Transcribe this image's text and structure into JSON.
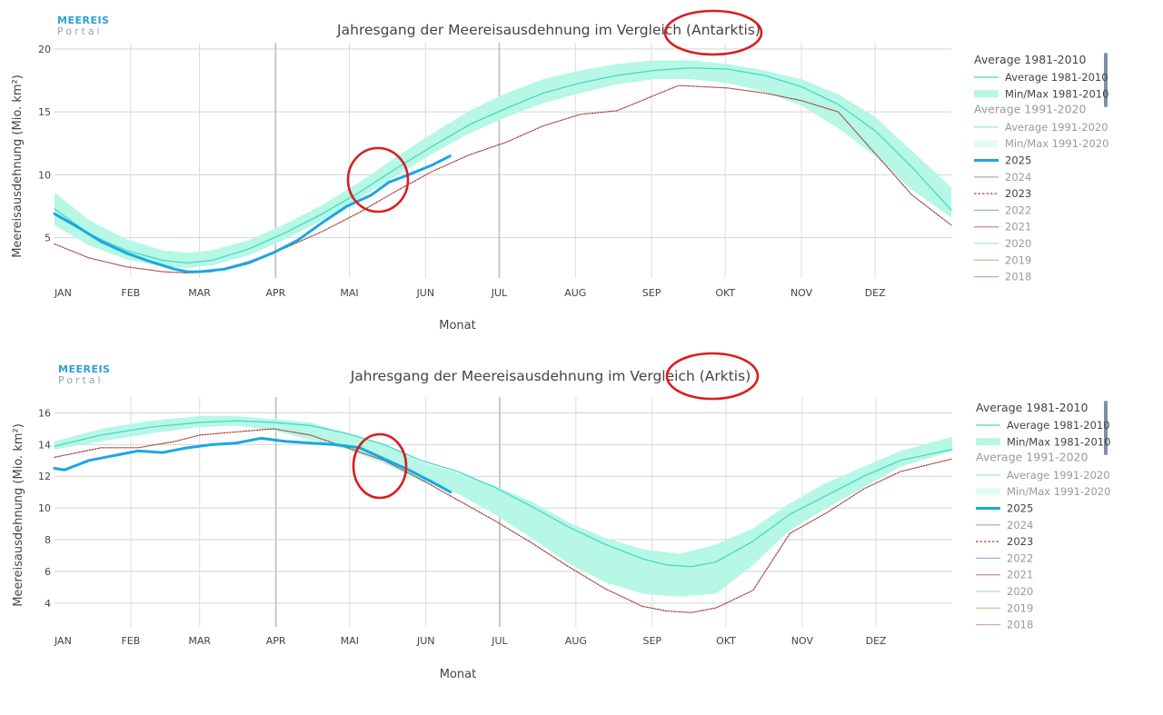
{
  "logo": {
    "line1": "MEEREIS",
    "line2": "Portal"
  },
  "legend": {
    "group1": "Average 1981-2010",
    "group2": "Average 1991-2020",
    "items": [
      {
        "key": "avg8110",
        "label": "Average 1981-2010",
        "color": "#48d9c2",
        "kind": "line",
        "active": true
      },
      {
        "key": "mm8110",
        "label": "Min/Max 1981-2010",
        "color": "#b6f7e6",
        "kind": "band",
        "active": true
      },
      {
        "key": "avg9120",
        "label": "Average 1991-2020",
        "color": "#9ee5da",
        "kind": "line",
        "active": false
      },
      {
        "key": "mm9120",
        "label": "Min/Max 1991-2020",
        "color": "#e6fbf6",
        "kind": "band",
        "active": false
      },
      {
        "key": "y2025",
        "label": "2025",
        "color": "#1aa7e0",
        "kind": "thick",
        "active": true
      },
      {
        "key": "y2024",
        "label": "2024",
        "color": "#c0b0b0",
        "kind": "line",
        "active": false
      },
      {
        "key": "y2023",
        "label": "2023",
        "color": "#a0403c",
        "kind": "dotted",
        "active": true
      },
      {
        "key": "y2022",
        "label": "2022",
        "color": "#9ab4d8",
        "kind": "line",
        "active": false
      },
      {
        "key": "y2021",
        "label": "2021",
        "color": "#c9949b",
        "kind": "line",
        "active": false
      },
      {
        "key": "y2020",
        "label": "2020",
        "color": "#a8dfdf",
        "kind": "line",
        "active": false
      },
      {
        "key": "y2019",
        "label": "2019",
        "color": "#cfc49a",
        "kind": "line",
        "active": false
      },
      {
        "key": "y2018",
        "label": "2018",
        "color": "#c9a7c4",
        "kind": "line",
        "active": false
      }
    ]
  },
  "chart_data": [
    {
      "type": "line",
      "title": "Jahresgang der Meereisausdehnung im Vergleich (Antarktis)",
      "xlabel": "Monat",
      "ylabel": "Meereisausdehnung (Mio. km²)",
      "months": [
        "JAN",
        "FEB",
        "MAR",
        "APR",
        "MAI",
        "JUN",
        "JUL",
        "AUG",
        "SEP",
        "OKT",
        "NOV",
        "DEZ"
      ],
      "yticks": [
        5,
        10,
        15,
        20
      ],
      "ylim": [
        1.8,
        20.5
      ],
      "xlim": [
        1,
        366
      ],
      "grid": true,
      "series": [
        {
          "name": "Min/Max 1981-2010",
          "key": "mm8110",
          "type": "band",
          "x": [
            1,
            15,
            30,
            45,
            55,
            65,
            80,
            95,
            110,
            125,
            140,
            155,
            170,
            185,
            200,
            215,
            230,
            245,
            260,
            275,
            290,
            305,
            320,
            335,
            350,
            366
          ],
          "low": [
            6.0,
            4.4,
            3.3,
            2.7,
            2.6,
            2.8,
            3.6,
            4.9,
            6.4,
            8.1,
            9.9,
            11.7,
            13.3,
            14.6,
            15.7,
            16.5,
            17.2,
            17.6,
            17.6,
            17.3,
            16.6,
            15.5,
            13.7,
            11.5,
            8.8,
            6.6
          ],
          "high": [
            8.6,
            6.4,
            4.9,
            4.0,
            3.8,
            4.0,
            4.8,
            6.1,
            7.6,
            9.4,
            11.4,
            13.3,
            15.1,
            16.5,
            17.6,
            18.3,
            18.8,
            19.1,
            19.1,
            18.8,
            18.3,
            17.6,
            16.4,
            14.6,
            11.9,
            9.0
          ]
        },
        {
          "name": "Average 1981-2010",
          "key": "avg8110",
          "type": "line",
          "x": [
            1,
            15,
            30,
            45,
            55,
            65,
            80,
            95,
            110,
            125,
            140,
            155,
            170,
            185,
            200,
            215,
            230,
            245,
            260,
            275,
            290,
            305,
            320,
            335,
            350,
            366
          ],
          "y": [
            7.3,
            5.3,
            4.0,
            3.2,
            3.0,
            3.2,
            4.1,
            5.4,
            6.9,
            8.6,
            10.5,
            12.3,
            14.0,
            15.3,
            16.5,
            17.3,
            17.9,
            18.3,
            18.5,
            18.4,
            17.9,
            17.0,
            15.6,
            13.5,
            10.6,
            7.2
          ]
        },
        {
          "name": "2023",
          "key": "y2023",
          "type": "dotted",
          "x": [
            1,
            15,
            30,
            45,
            55,
            65,
            80,
            95,
            110,
            125,
            140,
            155,
            170,
            185,
            200,
            215,
            230,
            245,
            255,
            265,
            275,
            290,
            305,
            320,
            335,
            350,
            366
          ],
          "y": [
            4.5,
            3.4,
            2.7,
            2.3,
            2.2,
            2.3,
            3.1,
            4.2,
            5.5,
            7.0,
            8.7,
            10.3,
            11.6,
            12.6,
            13.9,
            14.8,
            15.1,
            16.3,
            17.1,
            17.0,
            16.9,
            16.5,
            15.9,
            15.0,
            11.7,
            8.4,
            6.0
          ]
        },
        {
          "name": "2025",
          "key": "y2025",
          "type": "thick",
          "x": [
            1,
            10,
            20,
            30,
            40,
            50,
            55,
            60,
            70,
            80,
            90,
            100,
            110,
            120,
            130,
            137,
            145,
            155,
            162
          ],
          "y": [
            6.9,
            5.9,
            4.7,
            3.8,
            3.1,
            2.5,
            2.3,
            2.3,
            2.5,
            3.0,
            3.8,
            4.8,
            6.2,
            7.5,
            8.4,
            9.4,
            10.0,
            10.8,
            11.5
          ]
        }
      ]
    },
    {
      "type": "line",
      "title": "Jahresgang der Meereisausdehnung im Vergleich (Arktis)",
      "xlabel": "Monat",
      "ylabel": "Meereisausdehnung (Mio. km²)",
      "months": [
        "JAN",
        "FEB",
        "MAR",
        "APR",
        "MAI",
        "JUN",
        "JUL",
        "AUG",
        "SEP",
        "OKT",
        "NOV",
        "DEZ"
      ],
      "yticks": [
        4,
        6,
        8,
        10,
        12,
        14,
        16
      ],
      "ylim": [
        2.5,
        17
      ],
      "xlim": [
        1,
        366
      ],
      "grid": true,
      "series": [
        {
          "name": "Min/Max 1981-2010",
          "key": "mm8110",
          "type": "band",
          "x": [
            1,
            20,
            40,
            60,
            75,
            90,
            105,
            120,
            135,
            150,
            165,
            180,
            195,
            210,
            225,
            240,
            255,
            270,
            285,
            300,
            315,
            330,
            345,
            366
          ],
          "low": [
            13.7,
            14.2,
            14.7,
            15.1,
            15.2,
            14.9,
            14.3,
            13.7,
            12.8,
            11.7,
            10.9,
            9.6,
            8.1,
            6.5,
            5.3,
            4.6,
            4.4,
            4.6,
            6.4,
            8.6,
            10.0,
            11.3,
            12.6,
            13.6
          ],
          "high": [
            14.2,
            15.0,
            15.5,
            15.8,
            15.8,
            15.6,
            15.4,
            14.7,
            14.0,
            12.9,
            12.2,
            11.4,
            10.4,
            9.1,
            8.1,
            7.4,
            7.1,
            7.7,
            8.7,
            10.3,
            11.6,
            12.6,
            13.6,
            14.5
          ]
        },
        {
          "name": "Average 1981-2010",
          "key": "avg8110",
          "type": "line",
          "x": [
            1,
            20,
            40,
            60,
            75,
            90,
            105,
            120,
            135,
            150,
            165,
            180,
            195,
            210,
            225,
            240,
            250,
            260,
            270,
            285,
            300,
            315,
            330,
            345,
            366
          ],
          "y": [
            13.9,
            14.6,
            15.1,
            15.4,
            15.5,
            15.4,
            15.2,
            14.7,
            14.0,
            13.0,
            12.3,
            11.3,
            10.1,
            8.8,
            7.7,
            6.8,
            6.4,
            6.3,
            6.6,
            7.9,
            9.6,
            10.8,
            12.0,
            13.0,
            13.7
          ]
        },
        {
          "name": "2023",
          "key": "y2023",
          "type": "dotted",
          "x": [
            1,
            20,
            35,
            50,
            60,
            75,
            90,
            105,
            120,
            135,
            150,
            165,
            180,
            195,
            210,
            225,
            240,
            250,
            260,
            270,
            285,
            300,
            315,
            330,
            345,
            366
          ],
          "y": [
            13.2,
            13.8,
            13.8,
            14.2,
            14.6,
            14.8,
            15.0,
            14.6,
            13.8,
            13.0,
            11.8,
            10.5,
            9.2,
            7.8,
            6.3,
            4.9,
            3.8,
            3.5,
            3.4,
            3.7,
            4.8,
            8.4,
            9.7,
            11.2,
            12.3,
            13.1
          ]
        },
        {
          "name": "2025",
          "key": "y2025",
          "type": "thick",
          "x": [
            1,
            5,
            15,
            25,
            35,
            45,
            55,
            65,
            75,
            85,
            95,
            105,
            115,
            125,
            135,
            145,
            155,
            162
          ],
          "y": [
            12.5,
            12.4,
            13.0,
            13.3,
            13.6,
            13.5,
            13.8,
            14.0,
            14.1,
            14.4,
            14.2,
            14.1,
            14.0,
            13.8,
            13.1,
            12.4,
            11.6,
            11.0
          ]
        }
      ]
    }
  ]
}
